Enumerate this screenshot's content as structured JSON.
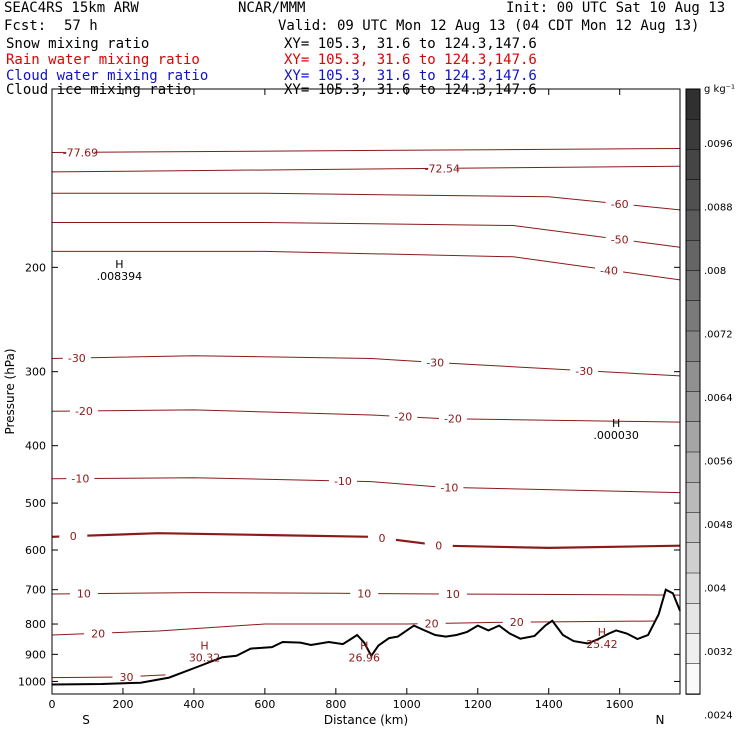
{
  "header": {
    "model": "SEAC4RS 15km ARW",
    "center": "NCAR/MMM",
    "init": "Init: 00 UTC Sat 10 Aug 13",
    "fcst_label": "Fcst:",
    "fcst_value": "57 h",
    "valid": "Valid: 09 UTC Mon 12 Aug 13 (04 CDT Mon 12 Aug 13)"
  },
  "fields": [
    {
      "name": "Snow mixing ratio",
      "xy": "XY= 105.3, 31.6 to 124.3,147.6",
      "color": "#000000"
    },
    {
      "name": "Rain water mixing ratio",
      "xy": "XY= 105.3, 31.6 to 124.3,147.6",
      "color": "#e00000"
    },
    {
      "name": "Cloud water mixing ratio",
      "xy": "XY= 105.3, 31.6 to 124.3,147.6",
      "color": "#1010d0"
    },
    {
      "name": "Cloud ice mixing ratio",
      "xy": "XY= 105.3, 31.6 to 124.3,147.6",
      "color": "#000000"
    }
  ],
  "colorbar": {
    "unit": "g kg⁻¹",
    "labels": [
      ".0096",
      ".0088",
      ".008",
      ".0072",
      ".0064",
      ".0056",
      ".0048",
      ".004",
      ".0032",
      ".0024"
    ]
  },
  "chart_data": {
    "type": "contour",
    "xlabel": "Distance (km)",
    "ylabel": "Pressure (hPa)",
    "xlim": [
      0,
      1770
    ],
    "ylim": [
      1050,
      100
    ],
    "y_scale": "log",
    "x_ticks": [
      "0",
      "200",
      "400",
      "600",
      "800",
      "1000",
      "1200",
      "1400",
      "1600"
    ],
    "y_ticks": [
      "200",
      "300",
      "400",
      "500",
      "600",
      "700",
      "800",
      "900",
      "1000"
    ],
    "end_labels": [
      "S",
      "N"
    ],
    "line_color": "#8b1a1a",
    "terrain_color": "#000000",
    "terrain": [
      [
        0,
        1012
      ],
      [
        140,
        1010
      ],
      [
        250,
        1005
      ],
      [
        330,
        985
      ],
      [
        420,
        940
      ],
      [
        480,
        910
      ],
      [
        520,
        905
      ],
      [
        560,
        880
      ],
      [
        620,
        875
      ],
      [
        650,
        858
      ],
      [
        700,
        860
      ],
      [
        730,
        868
      ],
      [
        780,
        858
      ],
      [
        820,
        865
      ],
      [
        840,
        850
      ],
      [
        860,
        835
      ],
      [
        880,
        860
      ],
      [
        900,
        905
      ],
      [
        920,
        870
      ],
      [
        950,
        845
      ],
      [
        975,
        840
      ],
      [
        1000,
        820
      ],
      [
        1020,
        805
      ],
      [
        1050,
        820
      ],
      [
        1080,
        835
      ],
      [
        1110,
        840
      ],
      [
        1140,
        835
      ],
      [
        1170,
        825
      ],
      [
        1200,
        805
      ],
      [
        1230,
        820
      ],
      [
        1260,
        805
      ],
      [
        1290,
        830
      ],
      [
        1320,
        847
      ],
      [
        1360,
        838
      ],
      [
        1390,
        805
      ],
      [
        1410,
        790
      ],
      [
        1440,
        835
      ],
      [
        1470,
        855
      ],
      [
        1510,
        863
      ],
      [
        1540,
        848
      ],
      [
        1570,
        830
      ],
      [
        1590,
        820
      ],
      [
        1620,
        830
      ],
      [
        1650,
        848
      ],
      [
        1680,
        835
      ],
      [
        1710,
        770
      ],
      [
        1730,
        700
      ],
      [
        1750,
        710
      ],
      [
        1770,
        760
      ]
    ],
    "isotherms": [
      {
        "label": "-77.69",
        "values": [
          [
            0,
            128
          ],
          [
            1770,
            126
          ]
        ],
        "label_x": [
          80
        ]
      },
      {
        "label": "-72.54",
        "values": [
          [
            0,
            138
          ],
          [
            1770,
            135
          ]
        ],
        "label_x": [
          1100
        ]
      },
      {
        "label": "-60",
        "values": [
          [
            0,
            150
          ],
          [
            600,
            150
          ],
          [
            1400,
            152
          ],
          [
            1770,
            160
          ]
        ],
        "label_x": [
          1600
        ]
      },
      {
        "label": "-50",
        "values": [
          [
            0,
            168
          ],
          [
            600,
            168
          ],
          [
            1300,
            170
          ],
          [
            1770,
            185
          ]
        ],
        "label_x": [
          1600
        ]
      },
      {
        "label": "-40",
        "values": [
          [
            0,
            188
          ],
          [
            600,
            188
          ],
          [
            1300,
            192
          ],
          [
            1770,
            210
          ]
        ],
        "label_x": [
          1570
        ]
      },
      {
        "label": "-30",
        "values": [
          [
            0,
            285
          ],
          [
            400,
            282
          ],
          [
            900,
            285
          ],
          [
            1100,
            290
          ],
          [
            1770,
            305
          ]
        ],
        "label_x": [
          70,
          1080,
          1500
        ]
      },
      {
        "label": "-20",
        "values": [
          [
            0,
            350
          ],
          [
            400,
            348
          ],
          [
            900,
            355
          ],
          [
            1100,
            360
          ],
          [
            1770,
            365
          ]
        ],
        "label_x": [
          90,
          990,
          1130
        ]
      },
      {
        "label": "-10",
        "values": [
          [
            0,
            455
          ],
          [
            400,
            453
          ],
          [
            900,
            460
          ],
          [
            1100,
            470
          ],
          [
            1770,
            480
          ]
        ],
        "label_x": [
          80,
          820,
          1120
        ]
      },
      {
        "label": "0",
        "values": [
          [
            0,
            570
          ],
          [
            300,
            562
          ],
          [
            600,
            566
          ],
          [
            900,
            570
          ],
          [
            1100,
            590
          ],
          [
            1400,
            595
          ],
          [
            1770,
            590
          ]
        ],
        "label_x": [
          60,
          930,
          1090
        ]
      },
      {
        "label": "10",
        "values": [
          [
            0,
            712
          ],
          [
            400,
            708
          ],
          [
            800,
            710
          ],
          [
            1100,
            712
          ],
          [
            1770,
            715
          ]
        ],
        "label_x": [
          90,
          880,
          1130
        ]
      },
      {
        "label": "20",
        "values": [
          [
            0,
            835
          ],
          [
            300,
            822
          ],
          [
            600,
            800
          ],
          [
            1000,
            800
          ],
          [
            1250,
            795
          ],
          [
            1770,
            790
          ]
        ],
        "label_x": [
          130,
          1070,
          1310
        ]
      },
      {
        "label": "30",
        "values": [
          [
            0,
            985
          ],
          [
            200,
            983
          ],
          [
            320,
            975
          ]
        ],
        "label_x": [
          210
        ]
      }
    ],
    "extrema": [
      {
        "kind": "H",
        "value": ".008394",
        "x": 190,
        "p": 202
      },
      {
        "kind": "H",
        "value": ".000030",
        "x": 1590,
        "p": 375
      },
      {
        "kind": "H",
        "value": "30.32",
        "x": 430,
        "p": 890
      },
      {
        "kind": "H",
        "value": "26.96",
        "x": 880,
        "p": 890
      },
      {
        "kind": "H",
        "value": "25.42",
        "x": 1550,
        "p": 845
      }
    ]
  }
}
